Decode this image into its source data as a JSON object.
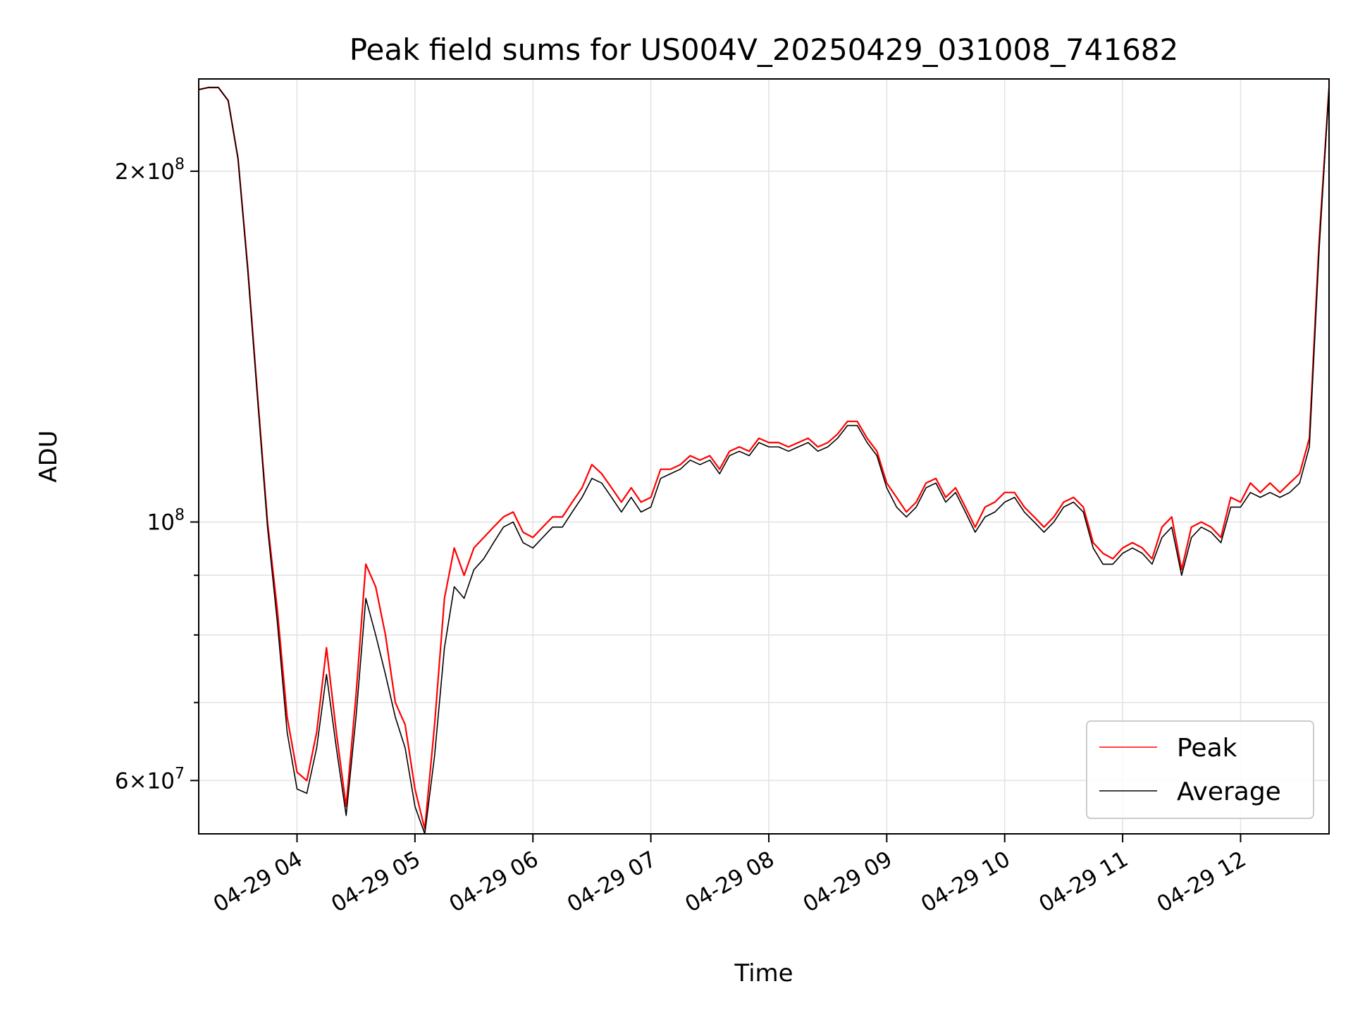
{
  "chart_data": {
    "type": "line",
    "title": "Peak field sums for US004V_20250429_031008_741682",
    "xlabel": "Time",
    "ylabel": "ADU",
    "yscale": "log",
    "xlim": [
      "2025-04-29 03:10",
      "2025-04-29 12:45"
    ],
    "ylim": [
      54000000,
      240000000
    ],
    "x_ticks": [
      "04-29 04",
      "04-29 05",
      "04-29 06",
      "04-29 07",
      "04-29 08",
      "04-29 09",
      "04-29 10",
      "04-29 11",
      "04-29 12"
    ],
    "y_ticks_major": [
      {
        "value": 60000000,
        "mantissa": "6",
        "exp": "7"
      },
      {
        "value": 100000000,
        "mantissa": "",
        "exp": "8"
      },
      {
        "value": 200000000,
        "mantissa": "2",
        "exp": "8"
      }
    ],
    "y_ticks_minor": [
      70000000,
      80000000,
      90000000
    ],
    "grid": true,
    "legend_position": "lower-right",
    "series": [
      {
        "name": "Peak",
        "color": "#ff0000",
        "x": [
          "2025-04-29 03:10",
          "2025-04-29 03:15",
          "2025-04-29 03:20",
          "2025-04-29 03:25",
          "2025-04-29 03:30",
          "2025-04-29 03:35",
          "2025-04-29 03:40",
          "2025-04-29 03:45",
          "2025-04-29 03:50",
          "2025-04-29 03:55",
          "2025-04-29 04:00",
          "2025-04-29 04:05",
          "2025-04-29 04:10",
          "2025-04-29 04:15",
          "2025-04-29 04:20",
          "2025-04-29 04:25",
          "2025-04-29 04:30",
          "2025-04-29 04:35",
          "2025-04-29 04:40",
          "2025-04-29 04:45",
          "2025-04-29 04:50",
          "2025-04-29 04:55",
          "2025-04-29 05:00",
          "2025-04-29 05:05",
          "2025-04-29 05:10",
          "2025-04-29 05:15",
          "2025-04-29 05:20",
          "2025-04-29 05:25",
          "2025-04-29 05:30",
          "2025-04-29 05:35",
          "2025-04-29 05:40",
          "2025-04-29 05:45",
          "2025-04-29 05:50",
          "2025-04-29 05:55",
          "2025-04-29 06:00",
          "2025-04-29 06:05",
          "2025-04-29 06:10",
          "2025-04-29 06:15",
          "2025-04-29 06:20",
          "2025-04-29 06:25",
          "2025-04-29 06:30",
          "2025-04-29 06:35",
          "2025-04-29 06:40",
          "2025-04-29 06:45",
          "2025-04-29 06:50",
          "2025-04-29 06:55",
          "2025-04-29 07:00",
          "2025-04-29 07:05",
          "2025-04-29 07:10",
          "2025-04-29 07:15",
          "2025-04-29 07:20",
          "2025-04-29 07:25",
          "2025-04-29 07:30",
          "2025-04-29 07:35",
          "2025-04-29 07:40",
          "2025-04-29 07:45",
          "2025-04-29 07:50",
          "2025-04-29 07:55",
          "2025-04-29 08:00",
          "2025-04-29 08:05",
          "2025-04-29 08:10",
          "2025-04-29 08:15",
          "2025-04-29 08:20",
          "2025-04-29 08:25",
          "2025-04-29 08:30",
          "2025-04-29 08:35",
          "2025-04-29 08:40",
          "2025-04-29 08:45",
          "2025-04-29 08:50",
          "2025-04-29 08:55",
          "2025-04-29 09:00",
          "2025-04-29 09:05",
          "2025-04-29 09:10",
          "2025-04-29 09:15",
          "2025-04-29 09:20",
          "2025-04-29 09:25",
          "2025-04-29 09:30",
          "2025-04-29 09:35",
          "2025-04-29 09:40",
          "2025-04-29 09:45",
          "2025-04-29 09:50",
          "2025-04-29 09:55",
          "2025-04-29 10:00",
          "2025-04-29 10:05",
          "2025-04-29 10:10",
          "2025-04-29 10:15",
          "2025-04-29 10:20",
          "2025-04-29 10:25",
          "2025-04-29 10:30",
          "2025-04-29 10:35",
          "2025-04-29 10:40",
          "2025-04-29 10:45",
          "2025-04-29 10:50",
          "2025-04-29 10:55",
          "2025-04-29 11:00",
          "2025-04-29 11:05",
          "2025-04-29 11:10",
          "2025-04-29 11:15",
          "2025-04-29 11:20",
          "2025-04-29 11:25",
          "2025-04-29 11:30",
          "2025-04-29 11:35",
          "2025-04-29 11:40",
          "2025-04-29 11:45",
          "2025-04-29 11:50",
          "2025-04-29 11:55",
          "2025-04-29 12:00",
          "2025-04-29 12:05",
          "2025-04-29 12:10",
          "2025-04-29 12:15",
          "2025-04-29 12:20",
          "2025-04-29 12:25",
          "2025-04-29 12:30",
          "2025-04-29 12:35",
          "2025-04-29 12:40",
          "2025-04-29 12:45"
        ],
        "y": [
          235000000,
          236000000,
          236000000,
          230000000,
          205000000,
          165000000,
          128000000,
          100000000,
          84000000,
          68000000,
          61000000,
          60000000,
          66000000,
          78000000,
          66000000,
          57000000,
          71000000,
          92000000,
          88000000,
          80000000,
          70000000,
          67000000,
          59000000,
          54500000,
          67000000,
          86000000,
          95000000,
          90000000,
          95000000,
          97000000,
          99000000,
          101000000,
          102000000,
          98000000,
          97000000,
          99000000,
          101000000,
          101000000,
          104000000,
          107000000,
          112000000,
          110000000,
          107000000,
          104000000,
          107000000,
          104000000,
          105000000,
          111000000,
          111000000,
          112000000,
          114000000,
          113000000,
          114000000,
          111000000,
          115000000,
          116000000,
          115000000,
          118000000,
          117000000,
          117000000,
          116000000,
          117000000,
          118000000,
          116000000,
          117000000,
          119000000,
          122000000,
          122000000,
          118000000,
          115000000,
          108000000,
          105000000,
          102000000,
          104000000,
          108000000,
          109000000,
          105000000,
          107000000,
          103000000,
          99000000,
          103000000,
          104000000,
          106000000,
          106000000,
          103000000,
          101000000,
          99000000,
          101000000,
          104000000,
          105000000,
          103000000,
          96000000,
          94000000,
          93000000,
          95000000,
          96000000,
          95000000,
          93000000,
          99000000,
          101000000,
          91000000,
          99000000,
          100000000,
          99000000,
          97000000,
          105000000,
          104000000,
          108000000,
          106000000,
          108000000,
          106000000,
          108000000,
          110000000,
          118000000,
          175000000,
          236000000
        ]
      },
      {
        "name": "Average",
        "color": "#000000",
        "x": [
          "2025-04-29 03:10",
          "2025-04-29 03:15",
          "2025-04-29 03:20",
          "2025-04-29 03:25",
          "2025-04-29 03:30",
          "2025-04-29 03:35",
          "2025-04-29 03:40",
          "2025-04-29 03:45",
          "2025-04-29 03:50",
          "2025-04-29 03:55",
          "2025-04-29 04:00",
          "2025-04-29 04:05",
          "2025-04-29 04:10",
          "2025-04-29 04:15",
          "2025-04-29 04:20",
          "2025-04-29 04:25",
          "2025-04-29 04:30",
          "2025-04-29 04:35",
          "2025-04-29 04:40",
          "2025-04-29 04:45",
          "2025-04-29 04:50",
          "2025-04-29 04:55",
          "2025-04-29 05:00",
          "2025-04-29 05:05",
          "2025-04-29 05:10",
          "2025-04-29 05:15",
          "2025-04-29 05:20",
          "2025-04-29 05:25",
          "2025-04-29 05:30",
          "2025-04-29 05:35",
          "2025-04-29 05:40",
          "2025-04-29 05:45",
          "2025-04-29 05:50",
          "2025-04-29 05:55",
          "2025-04-29 06:00",
          "2025-04-29 06:05",
          "2025-04-29 06:10",
          "2025-04-29 06:15",
          "2025-04-29 06:20",
          "2025-04-29 06:25",
          "2025-04-29 06:30",
          "2025-04-29 06:35",
          "2025-04-29 06:40",
          "2025-04-29 06:45",
          "2025-04-29 06:50",
          "2025-04-29 06:55",
          "2025-04-29 07:00",
          "2025-04-29 07:05",
          "2025-04-29 07:10",
          "2025-04-29 07:15",
          "2025-04-29 07:20",
          "2025-04-29 07:25",
          "2025-04-29 07:30",
          "2025-04-29 07:35",
          "2025-04-29 07:40",
          "2025-04-29 07:45",
          "2025-04-29 07:50",
          "2025-04-29 07:55",
          "2025-04-29 08:00",
          "2025-04-29 08:05",
          "2025-04-29 08:10",
          "2025-04-29 08:15",
          "2025-04-29 08:20",
          "2025-04-29 08:25",
          "2025-04-29 08:30",
          "2025-04-29 08:35",
          "2025-04-29 08:40",
          "2025-04-29 08:45",
          "2025-04-29 08:50",
          "2025-04-29 08:55",
          "2025-04-29 09:00",
          "2025-04-29 09:05",
          "2025-04-29 09:10",
          "2025-04-29 09:15",
          "2025-04-29 09:20",
          "2025-04-29 09:25",
          "2025-04-29 09:30",
          "2025-04-29 09:35",
          "2025-04-29 09:40",
          "2025-04-29 09:45",
          "2025-04-29 09:50",
          "2025-04-29 09:55",
          "2025-04-29 10:00",
          "2025-04-29 10:05",
          "2025-04-29 10:10",
          "2025-04-29 10:15",
          "2025-04-29 10:20",
          "2025-04-29 10:25",
          "2025-04-29 10:30",
          "2025-04-29 10:35",
          "2025-04-29 10:40",
          "2025-04-29 10:45",
          "2025-04-29 10:50",
          "2025-04-29 10:55",
          "2025-04-29 11:00",
          "2025-04-29 11:05",
          "2025-04-29 11:10",
          "2025-04-29 11:15",
          "2025-04-29 11:20",
          "2025-04-29 11:25",
          "2025-04-29 11:30",
          "2025-04-29 11:35",
          "2025-04-29 11:40",
          "2025-04-29 11:45",
          "2025-04-29 11:50",
          "2025-04-29 11:55",
          "2025-04-29 12:00",
          "2025-04-29 12:05",
          "2025-04-29 12:10",
          "2025-04-29 12:15",
          "2025-04-29 12:20",
          "2025-04-29 12:25",
          "2025-04-29 12:30",
          "2025-04-29 12:35",
          "2025-04-29 12:40",
          "2025-04-29 12:45"
        ],
        "y": [
          235000000,
          236000000,
          236000000,
          230000000,
          205000000,
          164000000,
          127000000,
          99000000,
          82000000,
          66000000,
          59000000,
          58500000,
          64000000,
          74000000,
          64000000,
          56000000,
          68000000,
          86000000,
          80000000,
          74000000,
          68000000,
          64000000,
          57000000,
          54000000,
          63000000,
          78000000,
          88000000,
          86000000,
          91000000,
          93000000,
          96000000,
          99000000,
          100000000,
          96000000,
          95000000,
          97000000,
          99000000,
          99000000,
          102000000,
          105000000,
          109000000,
          108000000,
          105000000,
          102000000,
          105000000,
          102000000,
          103000000,
          109000000,
          110000000,
          111000000,
          113000000,
          112000000,
          113000000,
          110000000,
          114000000,
          115000000,
          114000000,
          117000000,
          116000000,
          116000000,
          115000000,
          116000000,
          117000000,
          115000000,
          116000000,
          118000000,
          121000000,
          121000000,
          117000000,
          114000000,
          107000000,
          103000000,
          101000000,
          103000000,
          107000000,
          108000000,
          104000000,
          106000000,
          102000000,
          98000000,
          101000000,
          102000000,
          104000000,
          105000000,
          102000000,
          100000000,
          98000000,
          100000000,
          103000000,
          104000000,
          102000000,
          95000000,
          92000000,
          92000000,
          94000000,
          95000000,
          94000000,
          92000000,
          97000000,
          99000000,
          90000000,
          97000000,
          99000000,
          98000000,
          96000000,
          103000000,
          103000000,
          106000000,
          105000000,
          106000000,
          105000000,
          106000000,
          108000000,
          116000000,
          172000000,
          236000000
        ]
      }
    ]
  }
}
